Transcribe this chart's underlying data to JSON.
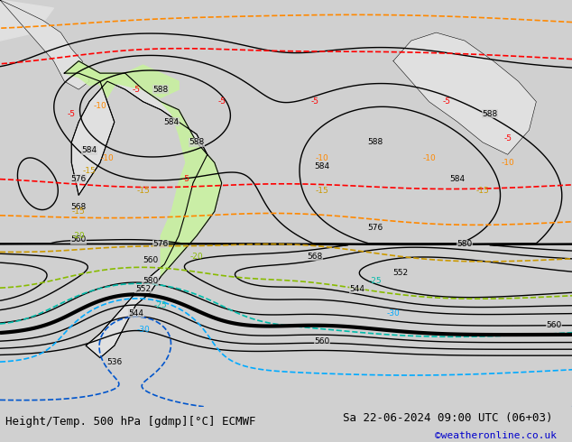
{
  "title_left": "Height/Temp. 500 hPa [gdmp][°C] ECMWF",
  "title_right": "Sa 22-06-2024 09:00 UTC (06+03)",
  "credit": "©weatheronline.co.uk",
  "bg_color": "#d0d0d0",
  "map_bg_color": "#c8c8c8",
  "land_color": "#e8e8e8",
  "green_area_color": "#c8f0a0",
  "bottom_bar_color": "#ffffff",
  "title_fontsize": 9,
  "credit_fontsize": 8,
  "credit_color": "#0000cc",
  "bottom_text_color": "#000000",
  "ocean_color": "#d0d0d0"
}
